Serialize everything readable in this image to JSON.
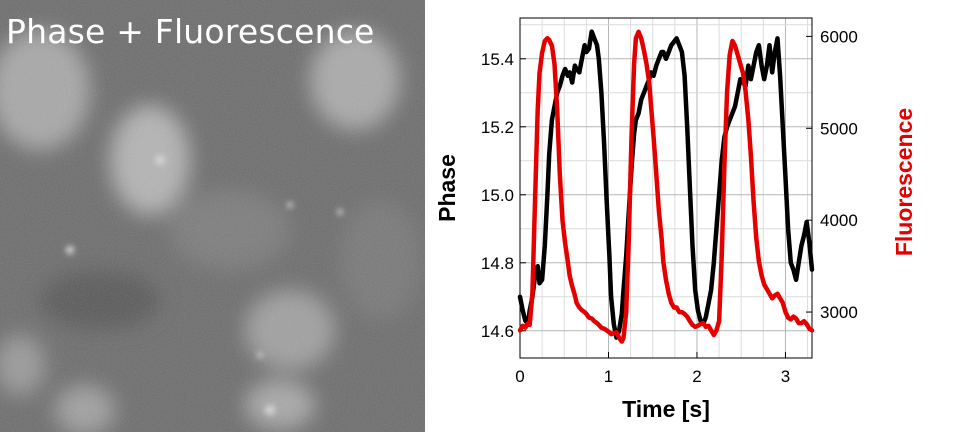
{
  "image": {
    "label": "Phase + Fluorescence"
  },
  "chart_data": {
    "type": "line",
    "xlabel": "Time [s]",
    "ylabel_left": "Phase",
    "ylabel_right": "Fluorescence",
    "xlim": [
      0,
      3.3
    ],
    "ylim_left": [
      14.52,
      15.52
    ],
    "ylim_right": [
      2500,
      6200
    ],
    "xticks": [
      0,
      1,
      2,
      3
    ],
    "yticks_left": [
      14.6,
      14.8,
      15.0,
      15.2,
      15.4
    ],
    "yticks_right": [
      3000,
      4000,
      5000,
      6000
    ],
    "grid": true,
    "colors": {
      "phase": "#000000",
      "fluorescence": "#e50000"
    },
    "series": [
      {
        "axis": "left",
        "x": [
          0.0,
          0.03,
          0.06,
          0.09,
          0.11,
          0.14,
          0.17,
          0.2,
          0.22,
          0.25,
          0.28,
          0.31,
          0.33,
          0.36,
          0.39,
          0.42,
          0.45,
          0.48,
          0.51,
          0.54,
          0.56,
          0.59,
          0.62,
          0.64,
          0.67,
          0.7,
          0.73,
          0.75,
          0.78,
          0.81,
          0.84,
          0.87,
          0.89,
          0.92,
          0.95,
          0.98,
          1.01,
          1.03,
          1.06,
          1.09,
          1.12,
          1.15,
          1.17,
          1.2,
          1.23,
          1.26,
          1.29,
          1.31,
          1.34,
          1.37,
          1.4,
          1.43,
          1.46,
          1.48,
          1.51,
          1.54,
          1.57,
          1.6,
          1.62,
          1.65,
          1.68,
          1.71,
          1.74,
          1.77,
          1.8,
          1.83,
          1.86,
          1.89,
          1.92,
          1.95,
          1.98,
          2.01,
          2.04,
          2.07,
          2.1,
          2.13,
          2.16,
          2.19,
          2.22,
          2.25,
          2.28,
          2.31,
          2.34,
          2.37,
          2.4,
          2.43,
          2.46,
          2.49,
          2.52,
          2.55,
          2.58,
          2.61,
          2.64,
          2.67,
          2.7,
          2.73,
          2.76,
          2.79,
          2.82,
          2.85,
          2.88,
          2.91,
          2.94,
          2.97,
          3.0,
          3.03,
          3.06,
          3.09,
          3.12,
          3.15,
          3.18,
          3.21,
          3.24,
          3.27,
          3.3
        ],
        "y": [
          14.7,
          14.66,
          14.63,
          14.62,
          14.66,
          14.7,
          14.76,
          14.79,
          14.74,
          14.75,
          14.85,
          15.0,
          15.12,
          15.22,
          15.26,
          15.3,
          15.32,
          15.35,
          15.37,
          15.35,
          15.36,
          15.33,
          15.38,
          15.37,
          15.36,
          15.4,
          15.44,
          15.42,
          15.43,
          15.48,
          15.46,
          15.44,
          15.4,
          15.3,
          15.15,
          14.98,
          14.82,
          14.7,
          14.62,
          14.58,
          14.6,
          14.65,
          14.72,
          14.82,
          14.95,
          15.08,
          15.18,
          15.22,
          15.24,
          15.28,
          15.3,
          15.32,
          15.34,
          15.36,
          15.35,
          15.38,
          15.4,
          15.42,
          15.42,
          15.4,
          15.42,
          15.44,
          15.45,
          15.46,
          15.44,
          15.42,
          15.35,
          15.2,
          15.02,
          14.85,
          14.72,
          14.66,
          14.63,
          14.62,
          14.64,
          14.68,
          14.72,
          14.8,
          14.9,
          15.0,
          15.1,
          15.17,
          15.2,
          15.22,
          15.24,
          15.26,
          15.3,
          15.34,
          15.33,
          15.32,
          15.38,
          15.34,
          15.38,
          15.42,
          15.44,
          15.38,
          15.34,
          15.38,
          15.44,
          15.36,
          15.42,
          15.46,
          15.35,
          15.2,
          15.05,
          14.9,
          14.8,
          14.78,
          14.75,
          14.8,
          14.85,
          14.88,
          14.92,
          14.86,
          14.78
        ]
      },
      {
        "axis": "right",
        "x": [
          0.0,
          0.03,
          0.06,
          0.09,
          0.11,
          0.14,
          0.17,
          0.2,
          0.22,
          0.25,
          0.28,
          0.31,
          0.33,
          0.36,
          0.39,
          0.42,
          0.45,
          0.48,
          0.51,
          0.54,
          0.56,
          0.59,
          0.62,
          0.64,
          0.67,
          0.7,
          0.73,
          0.75,
          0.78,
          0.81,
          0.84,
          0.87,
          0.89,
          0.92,
          0.95,
          0.98,
          1.01,
          1.03,
          1.06,
          1.09,
          1.12,
          1.15,
          1.17,
          1.2,
          1.23,
          1.26,
          1.29,
          1.31,
          1.34,
          1.37,
          1.4,
          1.43,
          1.46,
          1.48,
          1.51,
          1.54,
          1.57,
          1.6,
          1.62,
          1.65,
          1.68,
          1.71,
          1.74,
          1.77,
          1.8,
          1.83,
          1.86,
          1.89,
          1.92,
          1.95,
          1.98,
          2.01,
          2.04,
          2.07,
          2.1,
          2.13,
          2.16,
          2.19,
          2.22,
          2.25,
          2.28,
          2.31,
          2.34,
          2.37,
          2.4,
          2.43,
          2.46,
          2.49,
          2.52,
          2.55,
          2.58,
          2.61,
          2.64,
          2.67,
          2.7,
          2.73,
          2.76,
          2.79,
          2.82,
          2.85,
          2.88,
          2.91,
          2.94,
          2.97,
          3.0,
          3.03,
          3.06,
          3.09,
          3.12,
          3.15,
          3.18,
          3.21,
          3.24,
          3.27,
          3.3
        ],
        "y": [
          2800,
          2850,
          2830,
          2880,
          2860,
          3200,
          4200,
          5200,
          5600,
          5820,
          5950,
          5980,
          5960,
          5900,
          5700,
          5200,
          4500,
          4000,
          3750,
          3550,
          3400,
          3280,
          3180,
          3100,
          3050,
          3020,
          3000,
          2980,
          2940,
          2930,
          2900,
          2880,
          2860,
          2830,
          2820,
          2800,
          2780,
          2760,
          2770,
          2780,
          2720,
          2680,
          2720,
          3000,
          3800,
          4900,
          5700,
          5980,
          6050,
          5980,
          5850,
          5700,
          5500,
          5250,
          4900,
          4500,
          4100,
          3800,
          3550,
          3350,
          3200,
          3100,
          3050,
          3050,
          3000,
          3000,
          2980,
          2950,
          2900,
          2860,
          2840,
          2850,
          2870,
          2880,
          2840,
          2850,
          2800,
          2750,
          2800,
          2900,
          3600,
          4600,
          5400,
          5800,
          5950,
          5900,
          5800,
          5700,
          5600,
          5400,
          5100,
          4700,
          4200,
          3800,
          3550,
          3400,
          3300,
          3250,
          3200,
          3150,
          3180,
          3200,
          3150,
          3100,
          3000,
          2940,
          2920,
          2950,
          2930,
          2880,
          2880,
          2900,
          2870,
          2820,
          2800
        ]
      }
    ]
  }
}
